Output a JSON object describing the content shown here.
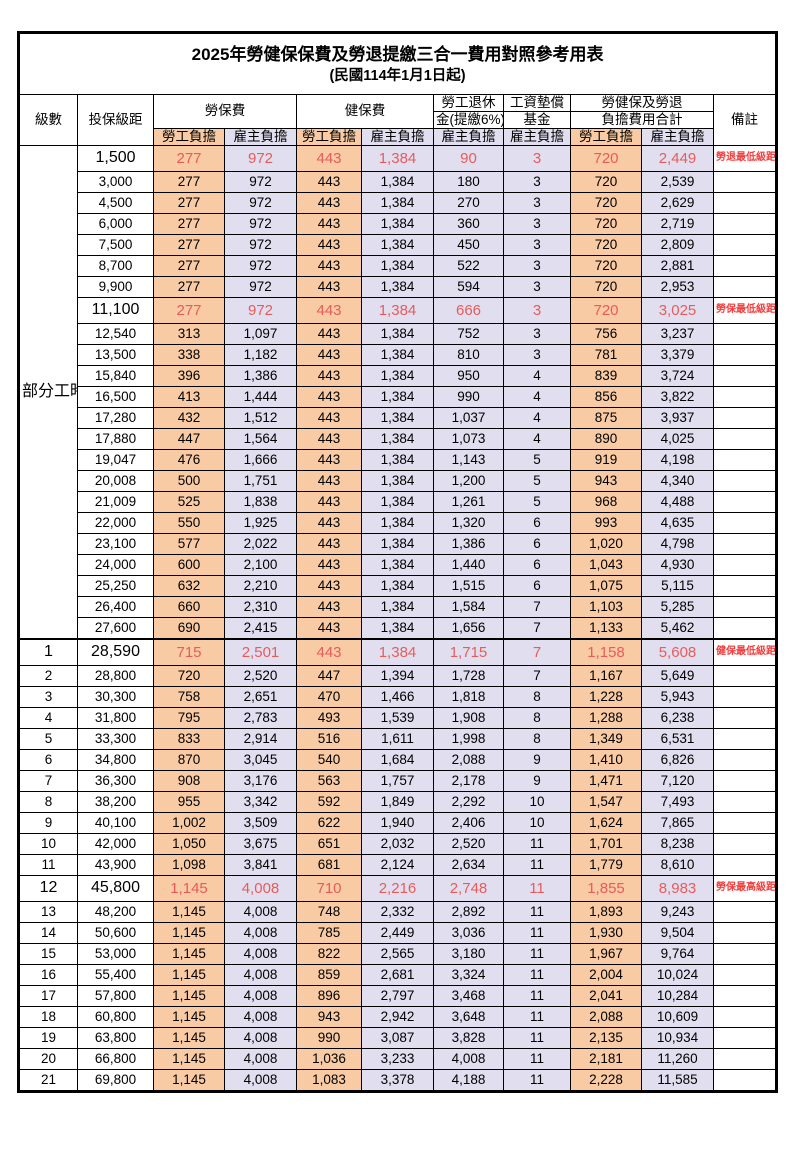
{
  "page": {
    "title": "2025年勞健保保費及勞退提繳三合一費用對照參考用表",
    "subtitle": "(民國114年1月1日起)"
  },
  "table": {
    "headers": {
      "level": "級數",
      "bracket": "投保級距",
      "labor_insurance": "勞保費",
      "health_insurance": "健保費",
      "pension_line1": "勞工退休",
      "pension_line2": "金(提繳6%)",
      "wage_fund_line1": "工資墊償",
      "wage_fund_line2": "基金",
      "total_line1": "勞健保及勞退",
      "total_line2": "負擔費用合計",
      "note": "備註",
      "employee": "勞工負擔",
      "employer": "雇主負擔"
    },
    "part_time_label": "部分工時",
    "part_time_span": 23,
    "colors": {
      "employee_bg": "#F8CBA4",
      "employer_bg": "#E1DFEF",
      "highlight_text": "#E85B5B",
      "note_text": "#F23E3E"
    },
    "rows": [
      {
        "level": "",
        "bracket": "1,500",
        "values": [
          "277",
          "972",
          "443",
          "1,384",
          "90",
          "3",
          "720",
          "2,449"
        ],
        "note": "勞退最低級距",
        "highlight": true
      },
      {
        "level": "",
        "bracket": "3,000",
        "values": [
          "277",
          "972",
          "443",
          "1,384",
          "180",
          "3",
          "720",
          "2,539"
        ],
        "highlight": false
      },
      {
        "level": "",
        "bracket": "4,500",
        "values": [
          "277",
          "972",
          "443",
          "1,384",
          "270",
          "3",
          "720",
          "2,629"
        ],
        "highlight": false
      },
      {
        "level": "",
        "bracket": "6,000",
        "values": [
          "277",
          "972",
          "443",
          "1,384",
          "360",
          "3",
          "720",
          "2,719"
        ],
        "highlight": false
      },
      {
        "level": "",
        "bracket": "7,500",
        "values": [
          "277",
          "972",
          "443",
          "1,384",
          "450",
          "3",
          "720",
          "2,809"
        ],
        "highlight": false
      },
      {
        "level": "",
        "bracket": "8,700",
        "values": [
          "277",
          "972",
          "443",
          "1,384",
          "522",
          "3",
          "720",
          "2,881"
        ],
        "highlight": false
      },
      {
        "level": "",
        "bracket": "9,900",
        "values": [
          "277",
          "972",
          "443",
          "1,384",
          "594",
          "3",
          "720",
          "2,953"
        ],
        "highlight": false
      },
      {
        "level": "",
        "bracket": "11,100",
        "values": [
          "277",
          "972",
          "443",
          "1,384",
          "666",
          "3",
          "720",
          "3,025"
        ],
        "note": "勞保最低級距",
        "highlight": true
      },
      {
        "level": "",
        "bracket": "12,540",
        "values": [
          "313",
          "1,097",
          "443",
          "1,384",
          "752",
          "3",
          "756",
          "3,237"
        ],
        "highlight": false
      },
      {
        "level": "",
        "bracket": "13,500",
        "values": [
          "338",
          "1,182",
          "443",
          "1,384",
          "810",
          "3",
          "781",
          "3,379"
        ],
        "highlight": false
      },
      {
        "level": "",
        "bracket": "15,840",
        "values": [
          "396",
          "1,386",
          "443",
          "1,384",
          "950",
          "4",
          "839",
          "3,724"
        ],
        "highlight": false
      },
      {
        "level": "",
        "bracket": "16,500",
        "values": [
          "413",
          "1,444",
          "443",
          "1,384",
          "990",
          "4",
          "856",
          "3,822"
        ],
        "highlight": false
      },
      {
        "level": "",
        "bracket": "17,280",
        "values": [
          "432",
          "1,512",
          "443",
          "1,384",
          "1,037",
          "4",
          "875",
          "3,937"
        ],
        "highlight": false
      },
      {
        "level": "",
        "bracket": "17,880",
        "values": [
          "447",
          "1,564",
          "443",
          "1,384",
          "1,073",
          "4",
          "890",
          "4,025"
        ],
        "highlight": false
      },
      {
        "level": "",
        "bracket": "19,047",
        "values": [
          "476",
          "1,666",
          "443",
          "1,384",
          "1,143",
          "5",
          "919",
          "4,198"
        ],
        "highlight": false
      },
      {
        "level": "",
        "bracket": "20,008",
        "values": [
          "500",
          "1,751",
          "443",
          "1,384",
          "1,200",
          "5",
          "943",
          "4,340"
        ],
        "highlight": false
      },
      {
        "level": "",
        "bracket": "21,009",
        "values": [
          "525",
          "1,838",
          "443",
          "1,384",
          "1,261",
          "5",
          "968",
          "4,488"
        ],
        "highlight": false
      },
      {
        "level": "",
        "bracket": "22,000",
        "values": [
          "550",
          "1,925",
          "443",
          "1,384",
          "1,320",
          "6",
          "993",
          "4,635"
        ],
        "highlight": false
      },
      {
        "level": "",
        "bracket": "23,100",
        "values": [
          "577",
          "2,022",
          "443",
          "1,384",
          "1,386",
          "6",
          "1,020",
          "4,798"
        ],
        "highlight": false
      },
      {
        "level": "",
        "bracket": "24,000",
        "values": [
          "600",
          "2,100",
          "443",
          "1,384",
          "1,440",
          "6",
          "1,043",
          "4,930"
        ],
        "highlight": false
      },
      {
        "level": "",
        "bracket": "25,250",
        "values": [
          "632",
          "2,210",
          "443",
          "1,384",
          "1,515",
          "6",
          "1,075",
          "5,115"
        ],
        "highlight": false
      },
      {
        "level": "",
        "bracket": "26,400",
        "values": [
          "660",
          "2,310",
          "443",
          "1,384",
          "1,584",
          "7",
          "1,103",
          "5,285"
        ],
        "highlight": false
      },
      {
        "level": "",
        "bracket": "27,600",
        "values": [
          "690",
          "2,415",
          "443",
          "1,384",
          "1,656",
          "7",
          "1,133",
          "5,462"
        ],
        "highlight": false
      },
      {
        "level": "1",
        "bracket": "28,590",
        "values": [
          "715",
          "2,501",
          "443",
          "1,384",
          "1,715",
          "7",
          "1,158",
          "5,608"
        ],
        "note": "健保最低級距",
        "highlight": true
      },
      {
        "level": "2",
        "bracket": "28,800",
        "values": [
          "720",
          "2,520",
          "447",
          "1,394",
          "1,728",
          "7",
          "1,167",
          "5,649"
        ],
        "highlight": false
      },
      {
        "level": "3",
        "bracket": "30,300",
        "values": [
          "758",
          "2,651",
          "470",
          "1,466",
          "1,818",
          "8",
          "1,228",
          "5,943"
        ],
        "highlight": false
      },
      {
        "level": "4",
        "bracket": "31,800",
        "values": [
          "795",
          "2,783",
          "493",
          "1,539",
          "1,908",
          "8",
          "1,288",
          "6,238"
        ],
        "highlight": false
      },
      {
        "level": "5",
        "bracket": "33,300",
        "values": [
          "833",
          "2,914",
          "516",
          "1,611",
          "1,998",
          "8",
          "1,349",
          "6,531"
        ],
        "highlight": false
      },
      {
        "level": "6",
        "bracket": "34,800",
        "values": [
          "870",
          "3,045",
          "540",
          "1,684",
          "2,088",
          "9",
          "1,410",
          "6,826"
        ],
        "highlight": false
      },
      {
        "level": "7",
        "bracket": "36,300",
        "values": [
          "908",
          "3,176",
          "563",
          "1,757",
          "2,178",
          "9",
          "1,471",
          "7,120"
        ],
        "highlight": false
      },
      {
        "level": "8",
        "bracket": "38,200",
        "values": [
          "955",
          "3,342",
          "592",
          "1,849",
          "2,292",
          "10",
          "1,547",
          "7,493"
        ],
        "highlight": false
      },
      {
        "level": "9",
        "bracket": "40,100",
        "values": [
          "1,002",
          "3,509",
          "622",
          "1,940",
          "2,406",
          "10",
          "1,624",
          "7,865"
        ],
        "highlight": false
      },
      {
        "level": "10",
        "bracket": "42,000",
        "values": [
          "1,050",
          "3,675",
          "651",
          "2,032",
          "2,520",
          "11",
          "1,701",
          "8,238"
        ],
        "highlight": false
      },
      {
        "level": "11",
        "bracket": "43,900",
        "values": [
          "1,098",
          "3,841",
          "681",
          "2,124",
          "2,634",
          "11",
          "1,779",
          "8,610"
        ],
        "highlight": false
      },
      {
        "level": "12",
        "bracket": "45,800",
        "values": [
          "1,145",
          "4,008",
          "710",
          "2,216",
          "2,748",
          "11",
          "1,855",
          "8,983"
        ],
        "note": "勞保最高級距",
        "highlight": true
      },
      {
        "level": "13",
        "bracket": "48,200",
        "values": [
          "1,145",
          "4,008",
          "748",
          "2,332",
          "2,892",
          "11",
          "1,893",
          "9,243"
        ],
        "highlight": false
      },
      {
        "level": "14",
        "bracket": "50,600",
        "values": [
          "1,145",
          "4,008",
          "785",
          "2,449",
          "3,036",
          "11",
          "1,930",
          "9,504"
        ],
        "highlight": false
      },
      {
        "level": "15",
        "bracket": "53,000",
        "values": [
          "1,145",
          "4,008",
          "822",
          "2,565",
          "3,180",
          "11",
          "1,967",
          "9,764"
        ],
        "highlight": false
      },
      {
        "level": "16",
        "bracket": "55,400",
        "values": [
          "1,145",
          "4,008",
          "859",
          "2,681",
          "3,324",
          "11",
          "2,004",
          "10,024"
        ],
        "highlight": false
      },
      {
        "level": "17",
        "bracket": "57,800",
        "values": [
          "1,145",
          "4,008",
          "896",
          "2,797",
          "3,468",
          "11",
          "2,041",
          "10,284"
        ],
        "highlight": false
      },
      {
        "level": "18",
        "bracket": "60,800",
        "values": [
          "1,145",
          "4,008",
          "943",
          "2,942",
          "3,648",
          "11",
          "2,088",
          "10,609"
        ],
        "highlight": false
      },
      {
        "level": "19",
        "bracket": "63,800",
        "values": [
          "1,145",
          "4,008",
          "990",
          "3,087",
          "3,828",
          "11",
          "2,135",
          "10,934"
        ],
        "highlight": false
      },
      {
        "level": "20",
        "bracket": "66,800",
        "values": [
          "1,145",
          "4,008",
          "1,036",
          "3,233",
          "4,008",
          "11",
          "2,181",
          "11,260"
        ],
        "highlight": false
      },
      {
        "level": "21",
        "bracket": "69,800",
        "values": [
          "1,145",
          "4,008",
          "1,083",
          "3,378",
          "4,188",
          "11",
          "2,228",
          "11,585"
        ],
        "highlight": false
      }
    ]
  }
}
